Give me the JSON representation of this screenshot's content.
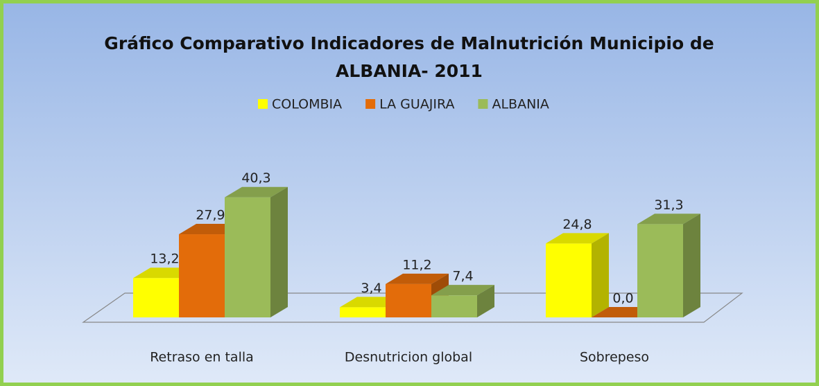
{
  "chart_data": {
    "type": "bar3d",
    "title": "Gráfico Comparativo Indicadores de Malnutrición Municipio de ALBANIA- 2011",
    "categories": [
      "Retraso en talla",
      "Desnutricion global",
      "Sobrepeso"
    ],
    "series": [
      {
        "name": "COLOMBIA",
        "color": "#ffff00",
        "values": [
          13.2,
          3.4,
          24.8
        ],
        "value_labels": [
          "13,2",
          "3,4",
          "24,8"
        ]
      },
      {
        "name": "LA GUAJIRA",
        "color": "#e36c0a",
        "values": [
          27.9,
          11.2,
          0.0
        ],
        "value_labels": [
          "27,9",
          "11,2",
          "0,0"
        ]
      },
      {
        "name": "ALBANIA",
        "color": "#9bbb59",
        "values": [
          40.3,
          7.4,
          31.3
        ],
        "value_labels": [
          "40,3",
          "7,4",
          "31,3"
        ]
      }
    ],
    "legend": "top"
  }
}
